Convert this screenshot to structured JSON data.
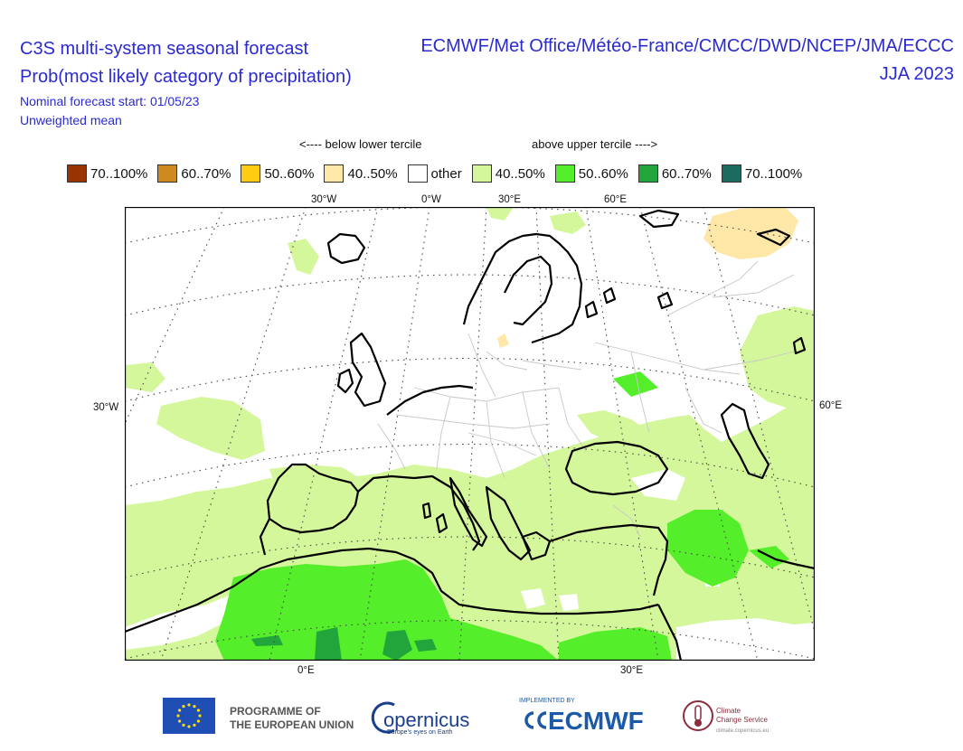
{
  "header": {
    "title_line1": "C3S multi-system seasonal forecast",
    "title_line2": "Prob(most likely category of precipitation)",
    "start_line": "Nominal forecast start: 01/05/23",
    "mean_line": "Unweighted mean",
    "systems": "ECMWF/Met Office/Météo-France/CMCC/DWD/NCEP/JMA/ECCC",
    "season": "JJA 2023"
  },
  "legend": {
    "below_caption": "<---- below lower tercile",
    "above_caption": "above upper tercile ---->",
    "items": [
      {
        "label": "70..100%",
        "color": "#993300"
      },
      {
        "label": "60..70%",
        "color": "#cc8a1f"
      },
      {
        "label": "50..60%",
        "color": "#ffcc11"
      },
      {
        "label": "40..50%",
        "color": "#ffe7a8"
      },
      {
        "label": "other",
        "color": "#ffffff"
      },
      {
        "label": "40..50%",
        "color": "#d4f79b"
      },
      {
        "label": "50..60%",
        "color": "#55ee2a"
      },
      {
        "label": "60..70%",
        "color": "#22a53b"
      },
      {
        "label": "70..100%",
        "color": "#1b6b5e"
      }
    ]
  },
  "map": {
    "top_labels": [
      "30°W",
      "0°W",
      "30°E",
      "60°E"
    ],
    "left_label": "30°W",
    "right_label": "60°E",
    "bottom_labels": [
      "0°E",
      "30°E"
    ],
    "colors": {
      "green_light": "#d4f79b",
      "green_mid": "#55ee2a",
      "green_dark": "#22a53b",
      "teal": "#1b6b5e",
      "tan": "#ffe7a8",
      "coast": "#000000",
      "border": "#c8c8c8"
    }
  },
  "footer": {
    "eu_line1": "PROGRAMME OF",
    "eu_line2": "THE EUROPEAN UNION",
    "copernicus": "opernicus",
    "copernicus_tag": "Europe's eyes on Earth",
    "ecmwf_tag": "IMPLEMENTED BY",
    "ecmwf": "ECMWF",
    "c3s_line1": "Climate",
    "c3s_line2": "Change Service",
    "c3s_url": "climate.copernicus.eu"
  }
}
